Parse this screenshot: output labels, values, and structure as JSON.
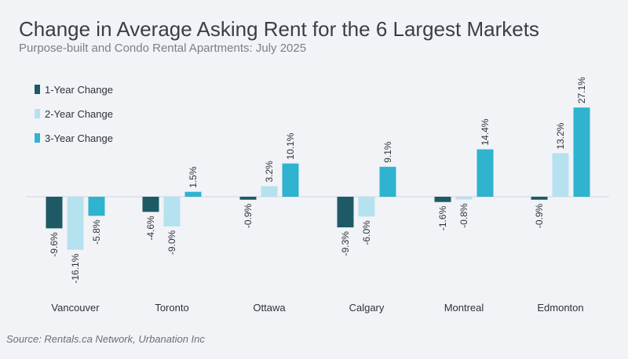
{
  "chart_data": {
    "type": "bar",
    "title": "Change in Average Asking Rent for the 6 Largest Markets",
    "subtitle": "Purpose-built and Condo Rental Apartments: July 2025",
    "categories": [
      "Vancouver",
      "Toronto",
      "Ottawa",
      "Calgary",
      "Montreal",
      "Edmonton"
    ],
    "series": [
      {
        "name": "1-Year Change",
        "color": "#1d5a66",
        "values": [
          -9.6,
          -4.6,
          -0.9,
          -9.3,
          -1.6,
          -0.9
        ],
        "labels": [
          "-9.6%",
          "-4.6%",
          "-0.9%",
          "-9.3%",
          "-1.6%",
          "-0.9%"
        ]
      },
      {
        "name": "2-Year Change",
        "color": "#b6e1ef",
        "values": [
          -16.1,
          -9.0,
          3.2,
          -6.0,
          -0.8,
          13.2
        ],
        "labels": [
          "-16.1%",
          "-9.0%",
          "3.2%",
          "-6.0%",
          "-0.8%",
          "13.2%"
        ]
      },
      {
        "name": "3-Year Change",
        "color": "#2fb3cf",
        "values": [
          -5.8,
          1.5,
          10.1,
          9.1,
          14.4,
          27.1
        ],
        "labels": [
          "-5.8%",
          "1.5%",
          "10.1%",
          "9.1%",
          "14.4%",
          "27.1%"
        ]
      }
    ],
    "ylim": [
      -16.1,
      27.1
    ],
    "legend_position": "top-left",
    "source": "Source: Rentals.ca Network, Urbanation Inc"
  }
}
